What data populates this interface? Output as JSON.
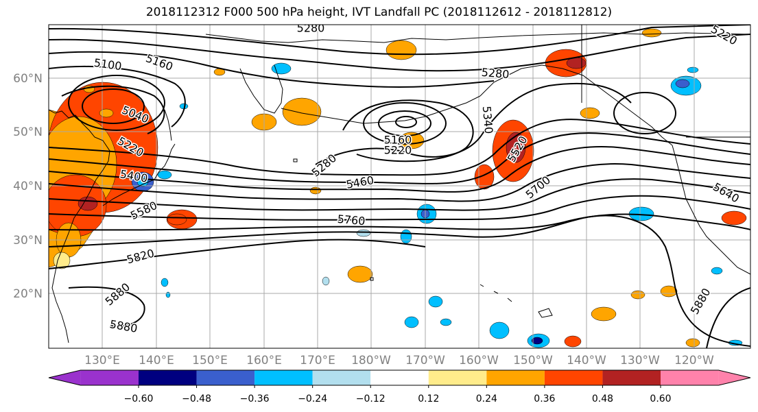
{
  "title": "2018112312 F000 500 hPa height, IVT Landfall PC (2018112612 - 2018112812)",
  "lat_labels": [
    "60°N",
    "50°N",
    "40°N",
    "30°N",
    "20°N"
  ],
  "lon_labels": [
    "130°E",
    "140°E",
    "150°E",
    "160°E",
    "170°E",
    "180°W",
    "170°W",
    "160°W",
    "150°W",
    "140°W",
    "130°W",
    "120°W"
  ],
  "colorbar": {
    "colors": [
      "#9a32cd",
      "#000080",
      "#3a5fcd",
      "#00bfff",
      "#b2dfee",
      "#ffffff",
      "#ffec8b",
      "#ffa500",
      "#ff4500",
      "#b22222",
      "#ff82ab"
    ],
    "tick_labels": [
      "−0.60",
      "−0.48",
      "−0.36",
      "−0.24",
      "−0.12",
      "0.12",
      "0.24",
      "0.36",
      "0.48",
      "0.60"
    ]
  },
  "contour_labels": [
    {
      "text": "5100"
    },
    {
      "text": "5160"
    },
    {
      "text": "5040"
    },
    {
      "text": "5220"
    },
    {
      "text": "5400"
    },
    {
      "text": "5580"
    },
    {
      "text": "5820"
    },
    {
      "text": "5880"
    },
    {
      "text": "5880"
    },
    {
      "text": "5280"
    },
    {
      "text": "5460"
    },
    {
      "text": "5760"
    },
    {
      "text": "5160"
    },
    {
      "text": "5220"
    },
    {
      "text": "5340"
    },
    {
      "text": "5280"
    },
    {
      "text": "5520"
    },
    {
      "text": "5700"
    },
    {
      "text": "5640"
    },
    {
      "text": "5880"
    },
    {
      "text": "5220"
    },
    {
      "text": "5280"
    }
  ]
}
